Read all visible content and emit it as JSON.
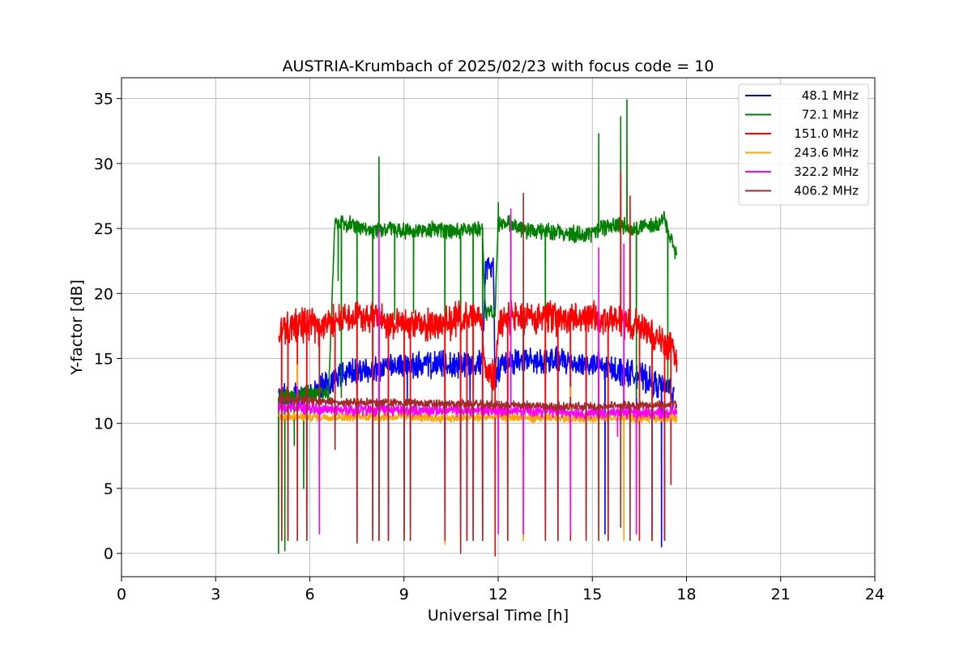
{
  "chart_data": {
    "type": "line",
    "title": "AUSTRIA-Krumbach of 2025/02/23 with focus code = 10",
    "xlabel": "Universal Time [h]",
    "ylabel": "Y-factor [dB]",
    "xlim": [
      0,
      24
    ],
    "ylim": [
      -1.8,
      36.6
    ],
    "xticks": [
      0,
      3,
      6,
      9,
      12,
      15,
      18,
      21,
      24
    ],
    "yticks": [
      0,
      5,
      10,
      15,
      20,
      25,
      30,
      35
    ],
    "grid": true,
    "legend_position": "top-right",
    "series": [
      {
        "name": "48.1 MHz",
        "color": "#0000ff",
        "baseline": [
          [
            5.0,
            12.0
          ],
          [
            6.0,
            12.2
          ],
          [
            6.3,
            12.5
          ],
          [
            6.8,
            13.5
          ],
          [
            7.5,
            14.0
          ],
          [
            8.5,
            14.2
          ],
          [
            9.0,
            14.5
          ],
          [
            10.5,
            14.5
          ],
          [
            11.5,
            14.8
          ],
          [
            11.6,
            22.0
          ],
          [
            11.85,
            22.0
          ],
          [
            11.9,
            13.8
          ],
          [
            12.2,
            14.8
          ],
          [
            13.0,
            14.8
          ],
          [
            14.0,
            14.8
          ],
          [
            15.0,
            14.5
          ],
          [
            16.0,
            14.0
          ],
          [
            16.5,
            13.7
          ],
          [
            17.0,
            13.0
          ],
          [
            17.5,
            12.7
          ],
          [
            17.6,
            12.0
          ]
        ],
        "noise": 0.8,
        "spikes": [
          [
            5.1,
            11.4
          ],
          [
            5.3,
            11.4
          ],
          [
            5.9,
            11.4
          ],
          [
            6.3,
            11.4
          ],
          [
            7.5,
            11.4
          ],
          [
            8.0,
            11.4
          ],
          [
            8.5,
            11.4
          ],
          [
            9.1,
            11.4
          ],
          [
            10.3,
            11.4
          ],
          [
            10.8,
            11.4
          ],
          [
            11.1,
            11.4
          ],
          [
            11.5,
            11.4
          ],
          [
            12.3,
            11.5
          ],
          [
            12.8,
            11.4
          ],
          [
            13.5,
            11.4
          ],
          [
            13.9,
            11.4
          ],
          [
            14.3,
            11.4
          ],
          [
            14.8,
            11.4
          ],
          [
            15.2,
            11.4
          ],
          [
            15.4,
            1.5
          ],
          [
            16.0,
            11.4
          ],
          [
            16.4,
            11.4
          ],
          [
            17.2,
            0.5
          ]
        ]
      },
      {
        "name": "72.1 MHz",
        "color": "#008000",
        "baseline": [
          [
            5.0,
            12.0
          ],
          [
            6.0,
            12.3
          ],
          [
            6.6,
            12.3
          ],
          [
            6.8,
            25.5
          ],
          [
            7.5,
            25.2
          ],
          [
            8.0,
            24.8
          ],
          [
            8.5,
            25.0
          ],
          [
            9.0,
            24.8
          ],
          [
            10.0,
            25.0
          ],
          [
            10.5,
            24.7
          ],
          [
            11.0,
            25.0
          ],
          [
            11.5,
            25.0
          ],
          [
            11.6,
            18.5
          ],
          [
            11.9,
            18.5
          ],
          [
            12.0,
            25.5
          ],
          [
            12.5,
            25.2
          ],
          [
            13.0,
            24.8
          ],
          [
            14.0,
            24.8
          ],
          [
            14.5,
            24.5
          ],
          [
            15.0,
            24.7
          ],
          [
            15.5,
            25.2
          ],
          [
            16.0,
            25.2
          ],
          [
            16.5,
            25.0
          ],
          [
            17.0,
            25.3
          ],
          [
            17.3,
            25.8
          ],
          [
            17.5,
            24.0
          ],
          [
            17.7,
            22.8
          ]
        ],
        "noise": 0.5,
        "spikes": [
          [
            5.0,
            0.0
          ],
          [
            5.2,
            0.2
          ],
          [
            5.5,
            8.3
          ],
          [
            5.8,
            5.0
          ],
          [
            6.3,
            8.0
          ],
          [
            6.9,
            21.0
          ],
          [
            7.0,
            12.0
          ],
          [
            7.5,
            12.0
          ],
          [
            8.0,
            12.5
          ],
          [
            8.2,
            30.5
          ],
          [
            8.7,
            18.0
          ],
          [
            9.3,
            18.5
          ],
          [
            10.3,
            12.0
          ],
          [
            10.8,
            11.0
          ],
          [
            11.2,
            12.0
          ],
          [
            11.5,
            18.0
          ],
          [
            12.0,
            27.0
          ],
          [
            12.4,
            12.0
          ],
          [
            13.5,
            12.5
          ],
          [
            15.2,
            32.3
          ],
          [
            15.9,
            33.6
          ],
          [
            16.1,
            34.9
          ],
          [
            16.4,
            12.0
          ],
          [
            17.4,
            12.5
          ]
        ]
      },
      {
        "name": "151.0 MHz",
        "color": "#ff0000",
        "baseline": [
          [
            5.0,
            17.0
          ],
          [
            5.5,
            17.5
          ],
          [
            6.0,
            17.7
          ],
          [
            6.3,
            17.3
          ],
          [
            6.5,
            17.7
          ],
          [
            7.0,
            18.0
          ],
          [
            7.5,
            18.2
          ],
          [
            8.0,
            18.3
          ],
          [
            8.5,
            17.8
          ],
          [
            9.0,
            17.8
          ],
          [
            9.5,
            17.5
          ],
          [
            10.0,
            17.7
          ],
          [
            10.5,
            17.8
          ],
          [
            11.0,
            18.3
          ],
          [
            11.5,
            18.0
          ],
          [
            11.6,
            13.8
          ],
          [
            11.9,
            13.8
          ],
          [
            12.0,
            17.5
          ],
          [
            12.5,
            18.2
          ],
          [
            13.0,
            18.0
          ],
          [
            13.5,
            18.3
          ],
          [
            14.0,
            18.0
          ],
          [
            14.5,
            18.0
          ],
          [
            15.0,
            18.3
          ],
          [
            15.5,
            17.8
          ],
          [
            16.0,
            17.8
          ],
          [
            16.5,
            17.5
          ],
          [
            16.8,
            17.5
          ],
          [
            17.0,
            16.5
          ],
          [
            17.5,
            16.0
          ],
          [
            17.7,
            15.3
          ]
        ],
        "noise": 1.0,
        "spikes": [
          [
            5.1,
            1.0
          ],
          [
            5.3,
            1.0
          ],
          [
            5.6,
            1.0
          ],
          [
            5.9,
            1.0
          ],
          [
            6.3,
            11.0
          ],
          [
            6.8,
            8.0
          ],
          [
            7.5,
            1.0
          ],
          [
            8.0,
            1.0
          ],
          [
            8.2,
            1.0
          ],
          [
            8.5,
            1.0
          ],
          [
            9.0,
            1.0
          ],
          [
            9.2,
            1.0
          ],
          [
            10.3,
            1.0
          ],
          [
            10.8,
            0.2
          ],
          [
            11.0,
            1.0
          ],
          [
            11.2,
            1.0
          ],
          [
            11.5,
            1.0
          ],
          [
            11.9,
            -0.2
          ],
          [
            12.3,
            1.0
          ],
          [
            12.8,
            1.0
          ],
          [
            13.5,
            1.0
          ],
          [
            13.9,
            1.0
          ],
          [
            14.3,
            1.0
          ],
          [
            14.8,
            1.0
          ],
          [
            15.2,
            1.0
          ],
          [
            15.5,
            1.0
          ],
          [
            15.9,
            29.3
          ],
          [
            16.2,
            27.5
          ],
          [
            16.5,
            1.0
          ],
          [
            16.9,
            1.0
          ],
          [
            17.3,
            1.0
          ],
          [
            17.5,
            5.3
          ]
        ]
      },
      {
        "name": "243.6 MHz",
        "color": "#ffa500",
        "baseline": [
          [
            5.0,
            10.5
          ],
          [
            6.0,
            10.5
          ],
          [
            7.0,
            10.5
          ],
          [
            8.0,
            10.5
          ],
          [
            9.0,
            10.5
          ],
          [
            10.0,
            10.4
          ],
          [
            11.0,
            10.4
          ],
          [
            12.0,
            10.5
          ],
          [
            13.0,
            10.4
          ],
          [
            14.0,
            10.4
          ],
          [
            15.0,
            10.4
          ],
          [
            16.0,
            10.4
          ],
          [
            17.0,
            10.4
          ],
          [
            17.7,
            10.4
          ]
        ],
        "noise": 0.25,
        "spikes": [
          [
            5.1,
            1.0
          ],
          [
            5.3,
            1.0
          ],
          [
            5.6,
            14.5
          ],
          [
            5.9,
            1.0
          ],
          [
            6.3,
            8.8
          ],
          [
            7.5,
            1.0
          ],
          [
            8.0,
            1.0
          ],
          [
            8.5,
            7.6
          ],
          [
            9.0,
            1.0
          ],
          [
            9.2,
            1.0
          ],
          [
            10.3,
            0.7
          ],
          [
            10.8,
            1.0
          ],
          [
            11.0,
            1.0
          ],
          [
            11.2,
            1.0
          ],
          [
            11.5,
            1.0
          ],
          [
            12.0,
            6.8
          ],
          [
            12.3,
            1.0
          ],
          [
            12.8,
            1.0
          ],
          [
            13.5,
            1.0
          ],
          [
            13.9,
            1.0
          ],
          [
            14.3,
            12.8
          ],
          [
            14.8,
            1.0
          ],
          [
            15.2,
            1.0
          ],
          [
            15.5,
            1.0
          ],
          [
            16.0,
            1.0
          ],
          [
            16.9,
            1.0
          ],
          [
            17.3,
            1.0
          ]
        ]
      },
      {
        "name": "322.2 MHz",
        "color": "#ff00ff",
        "baseline": [
          [
            5.0,
            11.2
          ],
          [
            6.0,
            11.2
          ],
          [
            7.0,
            11.0
          ],
          [
            8.0,
            11.0
          ],
          [
            9.0,
            11.0
          ],
          [
            10.0,
            11.0
          ],
          [
            11.0,
            11.0
          ],
          [
            12.0,
            11.0
          ],
          [
            13.0,
            11.0
          ],
          [
            14.0,
            10.9
          ],
          [
            15.0,
            10.8
          ],
          [
            16.0,
            10.8
          ],
          [
            17.0,
            10.8
          ],
          [
            17.7,
            10.9
          ]
        ],
        "noise": 0.35,
        "spikes": [
          [
            5.1,
            1.7
          ],
          [
            5.3,
            1.5
          ],
          [
            5.6,
            12.8
          ],
          [
            5.9,
            1.7
          ],
          [
            6.3,
            1.5
          ],
          [
            7.5,
            1.7
          ],
          [
            8.0,
            1.5
          ],
          [
            8.2,
            25.0
          ],
          [
            8.5,
            1.5
          ],
          [
            9.0,
            1.7
          ],
          [
            9.2,
            1.7
          ],
          [
            10.3,
            1.5
          ],
          [
            10.8,
            1.5
          ],
          [
            11.0,
            1.7
          ],
          [
            11.2,
            1.5
          ],
          [
            11.5,
            1.5
          ],
          [
            12.0,
            1.5
          ],
          [
            12.4,
            26.5
          ],
          [
            12.8,
            1.5
          ],
          [
            13.5,
            1.5
          ],
          [
            13.9,
            1.5
          ],
          [
            14.3,
            1.5
          ],
          [
            14.8,
            1.5
          ],
          [
            15.2,
            23.5
          ],
          [
            15.5,
            1.5
          ],
          [
            15.8,
            9.0
          ],
          [
            16.0,
            23.8
          ],
          [
            16.4,
            1.5
          ],
          [
            16.9,
            1.5
          ],
          [
            17.3,
            1.7
          ]
        ]
      },
      {
        "name": "406.2 MHz",
        "color": "#a52a2a",
        "baseline": [
          [
            5.0,
            11.8
          ],
          [
            6.0,
            11.8
          ],
          [
            7.0,
            11.6
          ],
          [
            8.0,
            11.6
          ],
          [
            9.0,
            11.6
          ],
          [
            10.0,
            11.5
          ],
          [
            11.0,
            11.5
          ],
          [
            12.0,
            11.4
          ],
          [
            13.0,
            11.4
          ],
          [
            14.0,
            11.3
          ],
          [
            15.0,
            11.3
          ],
          [
            16.0,
            11.4
          ],
          [
            17.0,
            11.4
          ],
          [
            17.7,
            11.5
          ]
        ],
        "noise": 0.25,
        "spikes": [
          [
            5.1,
            1.0
          ],
          [
            5.3,
            1.0
          ],
          [
            5.6,
            1.0
          ],
          [
            5.9,
            1.0
          ],
          [
            6.3,
            14.5
          ],
          [
            6.8,
            8.0
          ],
          [
            7.5,
            0.8
          ],
          [
            8.0,
            1.0
          ],
          [
            8.2,
            1.0
          ],
          [
            8.5,
            1.0
          ],
          [
            9.0,
            1.0
          ],
          [
            9.2,
            1.0
          ],
          [
            10.3,
            1.0
          ],
          [
            10.8,
            0.0
          ],
          [
            11.0,
            1.0
          ],
          [
            11.2,
            1.0
          ],
          [
            11.5,
            1.0
          ],
          [
            11.8,
            12.8
          ],
          [
            12.3,
            1.0
          ],
          [
            12.8,
            27.7
          ],
          [
            13.5,
            1.0
          ],
          [
            13.9,
            1.0
          ],
          [
            14.3,
            12.0
          ],
          [
            14.8,
            1.0
          ],
          [
            15.2,
            1.0
          ],
          [
            15.5,
            1.0
          ],
          [
            15.9,
            2.0
          ],
          [
            16.2,
            1.0
          ],
          [
            16.9,
            1.0
          ],
          [
            17.3,
            1.0
          ]
        ]
      }
    ]
  }
}
